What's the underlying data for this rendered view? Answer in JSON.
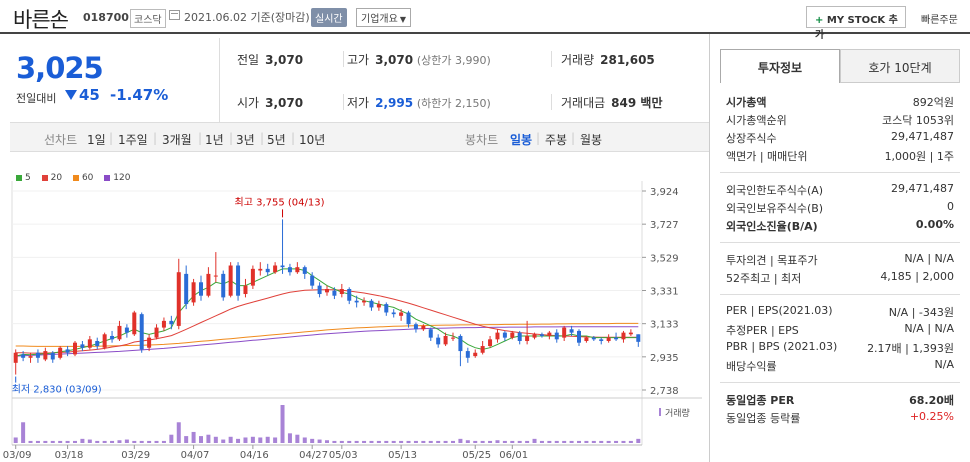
{
  "header": {
    "name": "바른손",
    "code": "018700",
    "market": "코스닥",
    "date": "2021.06.02  기준(장마감)",
    "realtime": "실시간",
    "company_info": "기업개요",
    "mystock": "MY STOCK 추가",
    "mystock_plus": "+",
    "quick_order": "빠른주문"
  },
  "price": {
    "current": "3,025",
    "prev_label": "전일대비",
    "change": "45",
    "change_pct": "-1.47%",
    "direction": "down",
    "color": "#1a5dd6"
  },
  "metrics": {
    "prev_close_label": "전일",
    "prev_close": "3,070",
    "high_label": "고가",
    "high": "3,070",
    "high_sub": "(상한가 3,990)",
    "volume_label": "거래량",
    "volume": "281,605",
    "open_label": "시가",
    "open": "3,070",
    "low_label": "저가",
    "low": "2,995",
    "low_sub": "(하한가 2,150)",
    "amount_label": "거래대금",
    "amount": "849 백만"
  },
  "period_bar": {
    "label1": "선차트",
    "items1": [
      "1일",
      "1주일",
      "3개월",
      "1년",
      "3년",
      "5년",
      "10년"
    ],
    "label2": "봉차트",
    "items2": [
      "일봉",
      "주봉",
      "월봉"
    ],
    "active2": "일봉"
  },
  "legend": [
    "5",
    "20",
    "60",
    "120"
  ],
  "legend_colors": [
    "#3aa83a",
    "#e0413a",
    "#f08a1c",
    "#8a4cc7"
  ],
  "chart_data": {
    "type": "candlestick",
    "y_ticks": [
      "3,924",
      "3,727",
      "3,529",
      "3,331",
      "3,133",
      "2,935",
      "2,738"
    ],
    "x_ticks": [
      "03/09",
      "03/18",
      "03/29",
      "04/07",
      "04/16",
      "04/27",
      "05/03",
      "05/13",
      "05/25",
      "06/01"
    ],
    "high_label": "최고 3,755 (04/13)",
    "low_label": "최저 2,830 (03/09)",
    "volume_label": "거래량",
    "ylim": [
      2738,
      3924
    ],
    "candles": [
      [
        2900,
        2960,
        2830,
        2980
      ],
      [
        2950,
        2930,
        2910,
        2970
      ],
      [
        2930,
        2940,
        2900,
        2960
      ],
      [
        2960,
        2930,
        2900,
        2980
      ],
      [
        2920,
        2970,
        2910,
        2990
      ],
      [
        2960,
        2920,
        2900,
        2970
      ],
      [
        2930,
        2990,
        2920,
        3000
      ],
      [
        2980,
        2960,
        2940,
        3000
      ],
      [
        2950,
        3020,
        2940,
        3030
      ],
      [
        3010,
        2990,
        2970,
        3030
      ],
      [
        2990,
        3040,
        2980,
        3060
      ],
      [
        3030,
        3000,
        2980,
        3050
      ],
      [
        2990,
        3070,
        2980,
        3080
      ],
      [
        3060,
        3040,
        3020,
        3090
      ],
      [
        3040,
        3120,
        3030,
        3150
      ],
      [
        3110,
        3080,
        3050,
        3130
      ],
      [
        3070,
        3200,
        3060,
        3210
      ],
      [
        3190,
        2980,
        2960,
        3200
      ],
      [
        2990,
        3050,
        2970,
        3070
      ],
      [
        3050,
        3110,
        3040,
        3130
      ],
      [
        3110,
        3150,
        3090,
        3170
      ],
      [
        3150,
        3130,
        3100,
        3180
      ],
      [
        3120,
        3440,
        3100,
        3520
      ],
      [
        3430,
        3250,
        3220,
        3480
      ],
      [
        3260,
        3380,
        3240,
        3400
      ],
      [
        3380,
        3300,
        3270,
        3420
      ],
      [
        3300,
        3430,
        3290,
        3470
      ],
      [
        3420,
        3420,
        3380,
        3560
      ],
      [
        3430,
        3290,
        3270,
        3450
      ],
      [
        3300,
        3480,
        3290,
        3500
      ],
      [
        3480,
        3300,
        3270,
        3500
      ],
      [
        3310,
        3360,
        3290,
        3400
      ],
      [
        3360,
        3460,
        3340,
        3480
      ],
      [
        3450,
        3460,
        3420,
        3500
      ],
      [
        3460,
        3440,
        3420,
        3490
      ],
      [
        3440,
        3480,
        3430,
        3500
      ],
      [
        3480,
        3470,
        3430,
        3755
      ],
      [
        3470,
        3440,
        3420,
        3490
      ],
      [
        3440,
        3470,
        3430,
        3500
      ],
      [
        3470,
        3430,
        3400,
        3480
      ],
      [
        3420,
        3360,
        3340,
        3440
      ],
      [
        3360,
        3310,
        3290,
        3380
      ],
      [
        3320,
        3340,
        3300,
        3360
      ],
      [
        3330,
        3300,
        3280,
        3350
      ],
      [
        3310,
        3340,
        3290,
        3370
      ],
      [
        3340,
        3270,
        3250,
        3350
      ],
      [
        3270,
        3260,
        3230,
        3300
      ],
      [
        3260,
        3270,
        3240,
        3290
      ],
      [
        3270,
        3230,
        3210,
        3280
      ],
      [
        3230,
        3250,
        3210,
        3270
      ],
      [
        3250,
        3200,
        3180,
        3260
      ],
      [
        3200,
        3190,
        3170,
        3220
      ],
      [
        3180,
        3200,
        3150,
        3220
      ],
      [
        3200,
        3130,
        3110,
        3210
      ],
      [
        3130,
        3100,
        3080,
        3140
      ],
      [
        3100,
        3120,
        3090,
        3130
      ],
      [
        3100,
        3050,
        3030,
        3110
      ],
      [
        3050,
        3010,
        2990,
        3070
      ],
      [
        3010,
        3060,
        3000,
        3080
      ],
      [
        3050,
        3050,
        3030,
        3080
      ],
      [
        3060,
        2970,
        2880,
        3070
      ],
      [
        2970,
        2930,
        2900,
        2990
      ],
      [
        2940,
        2960,
        2930,
        2980
      ],
      [
        2960,
        3000,
        2950,
        3030
      ],
      [
        3000,
        3040,
        2990,
        3060
      ],
      [
        3040,
        3080,
        3020,
        3100
      ],
      [
        3080,
        3050,
        3030,
        3090
      ],
      [
        3050,
        3080,
        3040,
        3090
      ],
      [
        3080,
        3030,
        3010,
        3090
      ],
      [
        3030,
        3060,
        3010,
        3150
      ],
      [
        3050,
        3070,
        3040,
        3080
      ],
      [
        3070,
        3060,
        3050,
        3080
      ],
      [
        3060,
        3080,
        3040,
        3090
      ],
      [
        3080,
        3040,
        3020,
        3100
      ],
      [
        3050,
        3110,
        3030,
        3120
      ],
      [
        3100,
        3080,
        3060,
        3120
      ],
      [
        3090,
        3020,
        3000,
        3100
      ],
      [
        3030,
        3050,
        3020,
        3060
      ],
      [
        3050,
        3040,
        3030,
        3060
      ],
      [
        3040,
        3030,
        3010,
        3050
      ],
      [
        3030,
        3050,
        3020,
        3070
      ],
      [
        3050,
        3040,
        3030,
        3080
      ],
      [
        3040,
        3080,
        3020,
        3090
      ],
      [
        3070,
        3080,
        3060,
        3100
      ],
      [
        3070,
        3025,
        2995,
        3070
      ]
    ],
    "ma5": [
      2940,
      2950,
      2948,
      2952,
      2954,
      2958,
      2966,
      2972,
      2980,
      2990,
      3000,
      3014,
      3030,
      3045,
      3060,
      3080,
      3100,
      3080,
      3070,
      3080,
      3090,
      3110,
      3200,
      3250,
      3300,
      3330,
      3350,
      3380,
      3370,
      3390,
      3360,
      3360,
      3380,
      3400,
      3420,
      3440,
      3460,
      3460,
      3460,
      3450,
      3420,
      3390,
      3360,
      3340,
      3320,
      3310,
      3290,
      3270,
      3260,
      3250,
      3240,
      3230,
      3210,
      3190,
      3160,
      3140,
      3120,
      3100,
      3070,
      3060,
      3040,
      3010,
      2990,
      2980,
      2990,
      3010,
      3030,
      3050,
      3060,
      3060,
      3060,
      3060,
      3060,
      3060,
      3060,
      3070,
      3060,
      3060,
      3050,
      3050,
      3050,
      3050,
      3050,
      3050,
      3050
    ],
    "ma20": [
      2960,
      2960,
      2958,
      2958,
      2958,
      2960,
      2962,
      2964,
      2968,
      2972,
      2976,
      2980,
      2986,
      2994,
      3000,
      3010,
      3024,
      3030,
      3036,
      3044,
      3052,
      3062,
      3080,
      3100,
      3120,
      3140,
      3160,
      3180,
      3200,
      3220,
      3236,
      3250,
      3262,
      3274,
      3286,
      3298,
      3310,
      3320,
      3326,
      3332,
      3334,
      3336,
      3336,
      3335,
      3332,
      3328,
      3322,
      3316,
      3308,
      3300,
      3290,
      3280,
      3268,
      3256,
      3242,
      3228,
      3214,
      3200,
      3186,
      3172,
      3158,
      3144,
      3130,
      3118,
      3108,
      3100,
      3092,
      3086,
      3080,
      3076,
      3072,
      3068,
      3064,
      3062,
      3060,
      3058,
      3056,
      3054,
      3053,
      3052,
      3052,
      3052,
      3052,
      3052,
      3052
    ],
    "ma60": [
      3000,
      3000,
      2999,
      2998,
      2998,
      2998,
      2998,
      2998,
      2998,
      2998,
      2998,
      2999,
      3000,
      3001,
      3002,
      3003,
      3004,
      3005,
      3006,
      3008,
      3010,
      3013,
      3016,
      3020,
      3024,
      3028,
      3032,
      3036,
      3040,
      3044,
      3048,
      3052,
      3056,
      3060,
      3064,
      3068,
      3072,
      3076,
      3080,
      3084,
      3088,
      3092,
      3096,
      3099,
      3102,
      3105,
      3108,
      3110,
      3112,
      3114,
      3116,
      3118,
      3119,
      3120,
      3121,
      3122,
      3123,
      3124,
      3125,
      3125,
      3126,
      3126,
      3127,
      3127,
      3128,
      3128,
      3129,
      3129,
      3130,
      3130,
      3130,
      3131,
      3131,
      3132,
      3132,
      3133,
      3133,
      3133,
      3134,
      3134,
      3134,
      3135,
      3135,
      3135,
      3135
    ],
    "ma120": [
      2940,
      2942,
      2944,
      2946,
      2948,
      2950,
      2952,
      2954,
      2956,
      2958,
      2960,
      2962,
      2964,
      2966,
      2968,
      2971,
      2974,
      2977,
      2980,
      2983,
      2986,
      2990,
      2994,
      2998,
      3002,
      3006,
      3010,
      3014,
      3018,
      3022,
      3026,
      3030,
      3034,
      3038,
      3042,
      3046,
      3050,
      3054,
      3058,
      3062,
      3066,
      3070,
      3073,
      3076,
      3079,
      3082,
      3085,
      3088,
      3090,
      3092,
      3094,
      3096,
      3098,
      3100,
      3102,
      3104,
      3105,
      3106,
      3107,
      3108,
      3109,
      3110,
      3110,
      3111,
      3111,
      3112,
      3112,
      3113,
      3113,
      3113,
      3114,
      3114,
      3114,
      3114,
      3115,
      3115,
      3115,
      3115,
      3115,
      3115,
      3115,
      3115,
      3115,
      3115,
      3115
    ],
    "volumes": [
      8,
      30,
      3,
      3,
      3,
      3,
      3,
      3,
      3,
      6,
      5,
      3,
      3,
      3,
      4,
      5,
      3,
      3,
      3,
      3,
      3,
      12,
      30,
      10,
      16,
      10,
      12,
      9,
      5,
      9,
      6,
      8,
      9,
      8,
      9,
      8,
      55,
      14,
      12,
      8,
      6,
      5,
      4,
      3,
      3,
      3,
      3,
      3,
      3,
      3,
      3,
      3,
      3,
      3,
      3,
      3,
      3,
      3,
      3,
      3,
      6,
      4,
      3,
      3,
      3,
      4,
      3,
      3,
      3,
      3,
      6,
      3,
      3,
      3,
      3,
      3,
      3,
      3,
      3,
      3,
      3,
      3,
      3,
      3,
      6
    ]
  },
  "right_panel": {
    "tab_active": "투자정보",
    "tab_other": "호가 10단계",
    "rows": [
      {
        "k": "시가총액",
        "v": "892억원",
        "kb": true,
        "vb": false
      },
      {
        "k": "시가총액순위",
        "v": "코스닥 1053위"
      },
      {
        "k": "상장주식수",
        "v": "29,471,487"
      },
      {
        "k": "액면가 | 매매단위",
        "v": "1,000원 | 1주"
      },
      {
        "k": "외국인한도주식수(A)",
        "v": "29,471,487"
      },
      {
        "k": "외국인보유주식수(B)",
        "v": "0"
      },
      {
        "k": "외국인소진율(B/A)",
        "v": "0.00%",
        "kb": true,
        "vb": true
      },
      {
        "k": "투자의견 | 목표주가",
        "v": "N/A | N/A"
      },
      {
        "k": "52주최고 | 최저",
        "v": "4,185 | 2,000"
      },
      {
        "k": "PER | EPS(2021.03)",
        "v": "N/A | -343원"
      },
      {
        "k": "추정PER | EPS",
        "v": "N/A | N/A"
      },
      {
        "k": "PBR | BPS (2021.03)",
        "v": "2.17배 | 1,393원"
      },
      {
        "k": "배당수익률",
        "v": "N/A"
      },
      {
        "k": "동일업종 PER",
        "v": "68.20배",
        "kb": true,
        "vb": true
      },
      {
        "k": "동일업종 등락률",
        "v": "+0.25%",
        "red": true
      }
    ]
  }
}
